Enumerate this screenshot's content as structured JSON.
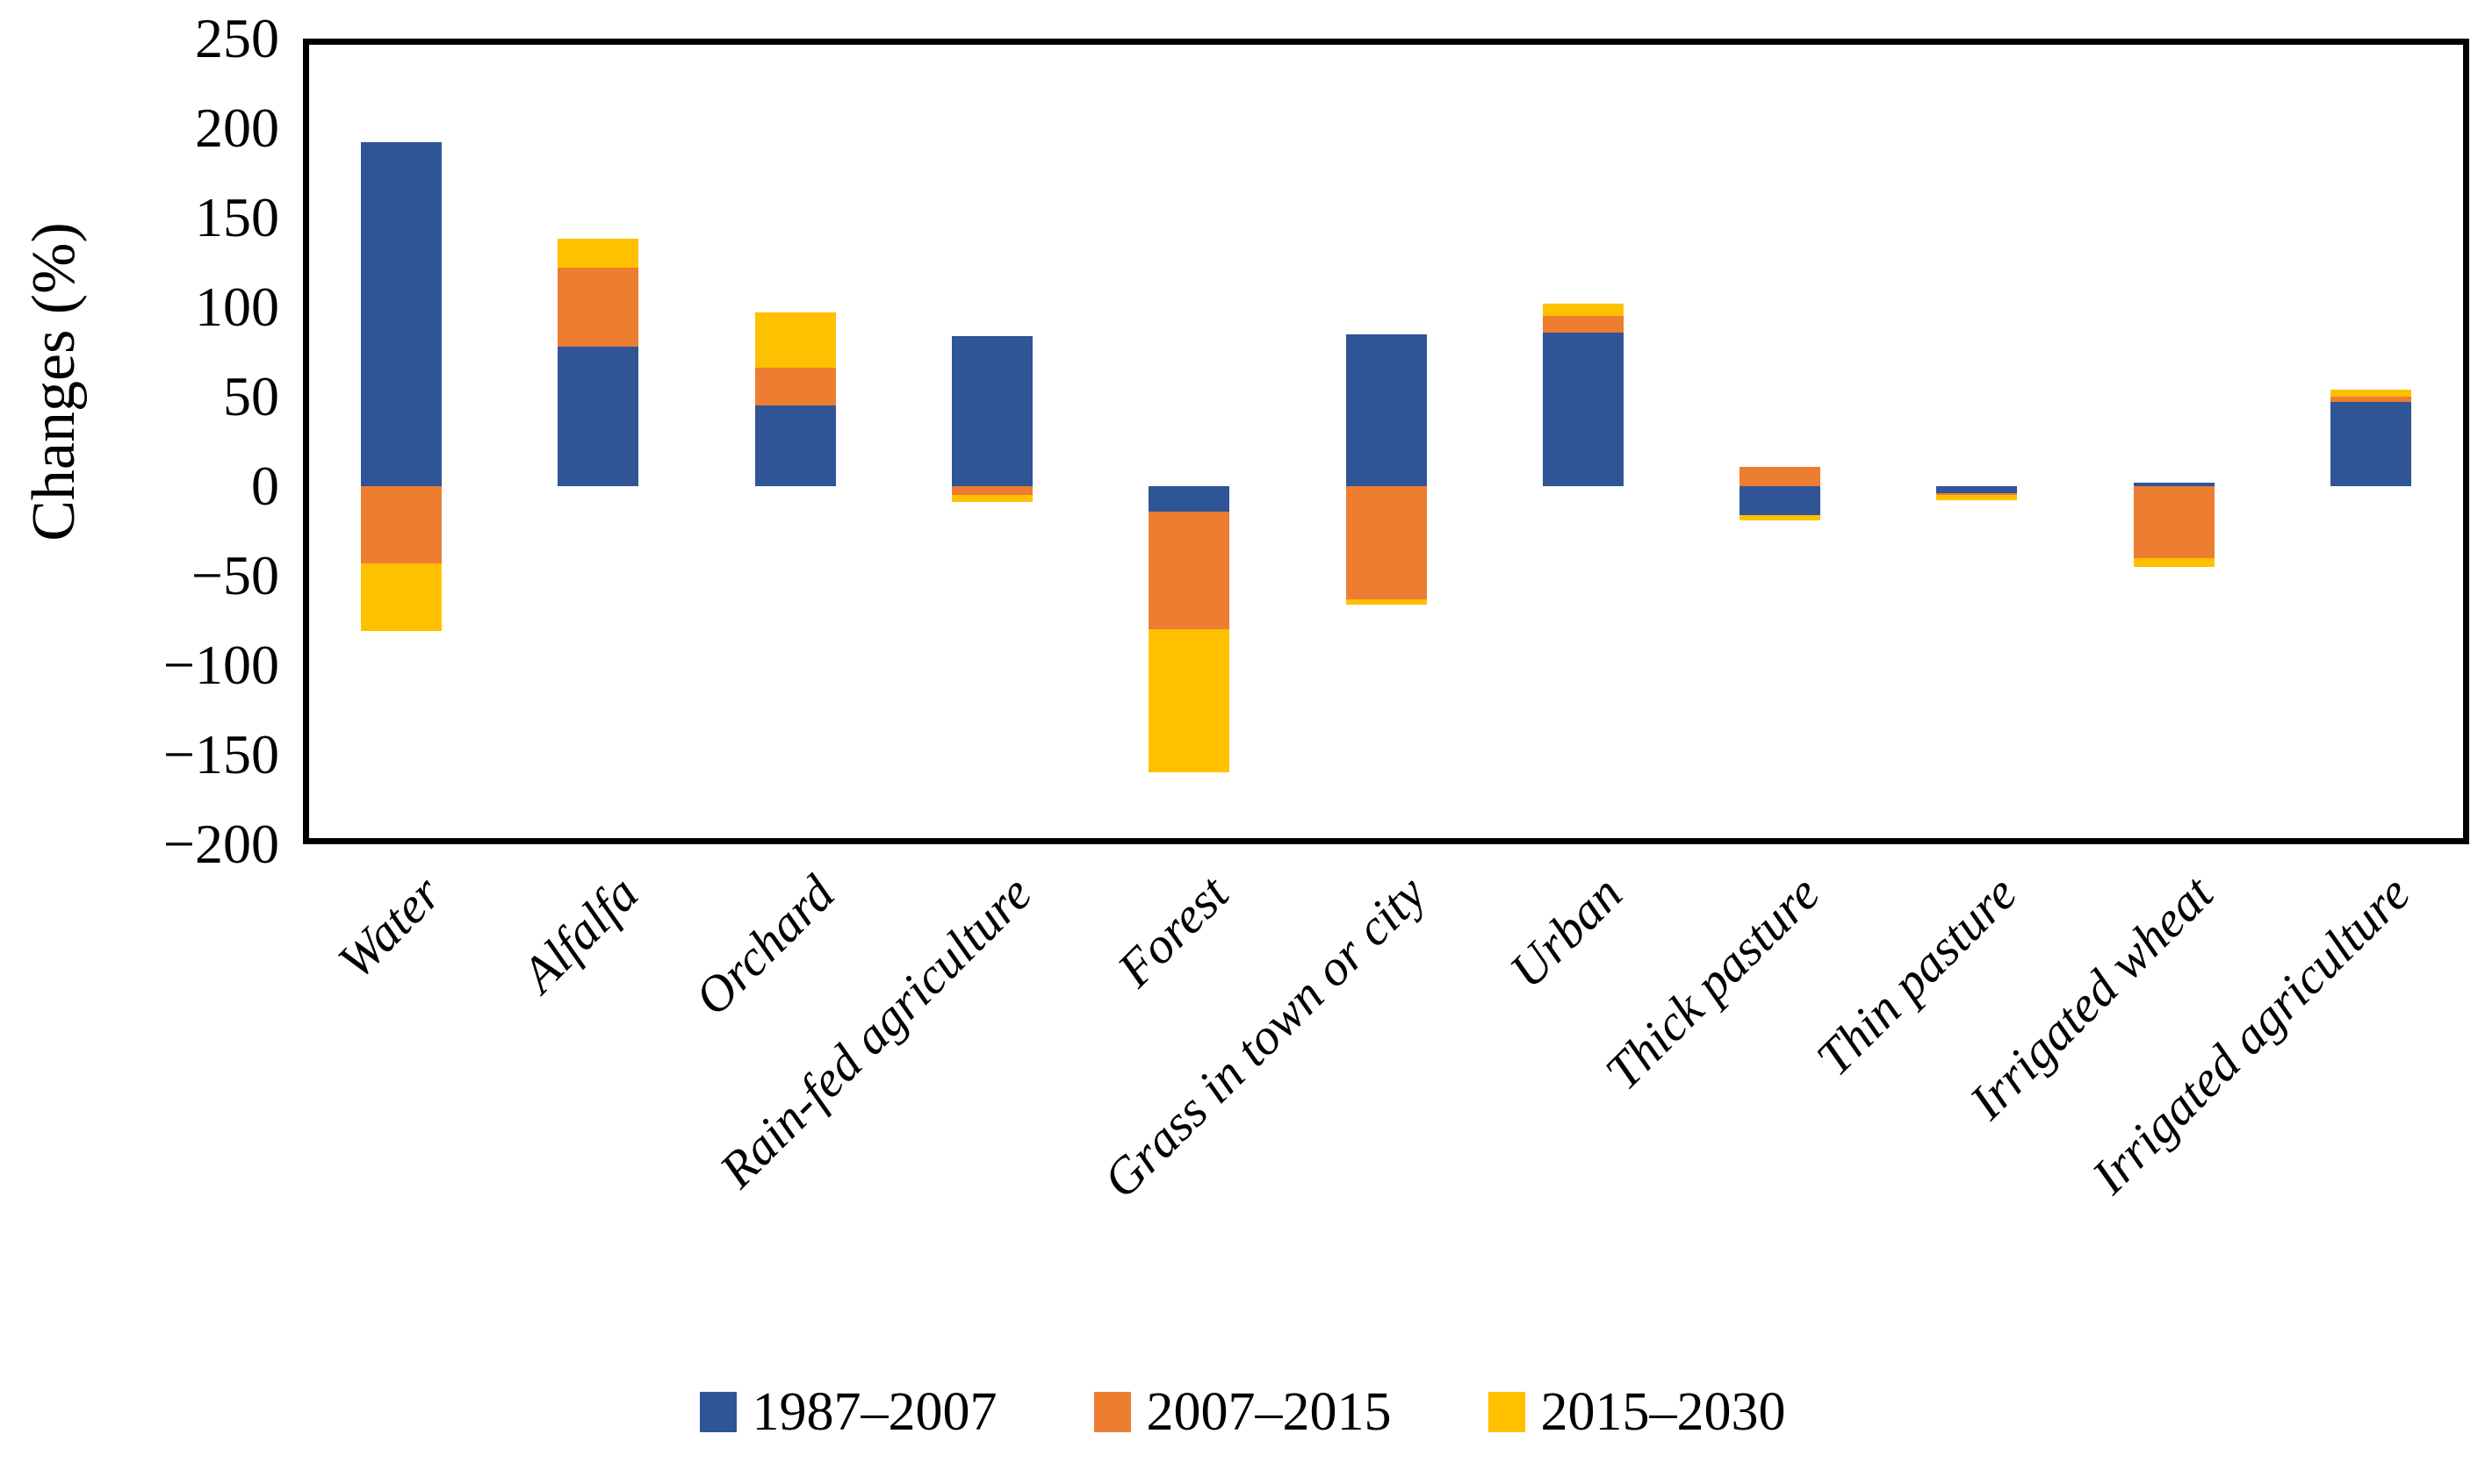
{
  "y_axis": {
    "title": "Changes (%)",
    "tick_labels": [
      "250",
      "200",
      "150",
      "100",
      "50",
      "0",
      "−50",
      "−100",
      "−150",
      "−200"
    ],
    "tick_values": [
      250,
      200,
      150,
      100,
      50,
      0,
      -50,
      -100,
      -150,
      -200
    ]
  },
  "chart_data": {
    "type": "bar",
    "subtype": "stacked-column",
    "title": "",
    "xlabel": "",
    "ylabel": "Changes (%)",
    "ylim": [
      -200,
      250
    ],
    "ytick_step": 50,
    "grid": false,
    "legend_position": "bottom",
    "categories": [
      "Water",
      "Alfalfa",
      "Orchard",
      "Rain-fed agriculture",
      "Forest",
      "Grass in town or city",
      "Urban",
      "Thick pasture",
      "Thin pasture",
      "Irrigated wheat",
      "Irrigated agriculture"
    ],
    "series": [
      {
        "name": "1987–2007",
        "color": "#2F5597",
        "values": [
          192,
          78,
          45,
          84,
          -14,
          85,
          86,
          -16,
          -4,
          2,
          47
        ]
      },
      {
        "name": "2007–2015",
        "color": "#ED7D31",
        "values": [
          -43,
          44,
          21,
          -5,
          -66,
          -63,
          9,
          11,
          -1,
          -40,
          3
        ]
      },
      {
        "name": "2015–2030",
        "color": "#FFC000",
        "values": [
          -38,
          16,
          31,
          -4,
          -80,
          -3,
          7,
          -3,
          -3,
          -5,
          4
        ]
      }
    ]
  },
  "legend": {
    "items": [
      {
        "label": "1987–2007",
        "color": "#2F5597"
      },
      {
        "label": "2007–2015",
        "color": "#ED7D31"
      },
      {
        "label": "2015–2030",
        "color": "#FFC000"
      }
    ]
  },
  "layout_hints": {
    "axis_color": "#000000",
    "background": "#FFFFFF"
  }
}
